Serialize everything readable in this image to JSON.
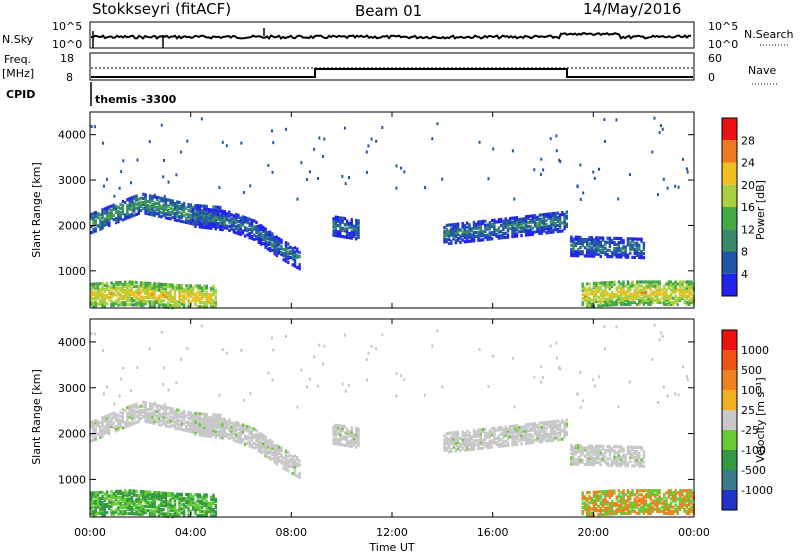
{
  "header": {
    "radar": "Stokkseyri (fitACF)",
    "beam": "Beam 01",
    "date": "14/May/2016"
  },
  "status": {
    "nsky_label": "N.Sky",
    "nsky_tick_top": "10^5",
    "nsky_tick_bottom": "10^0",
    "nsearch_label": "N.Search",
    "nsearch_tick_top": "10^5",
    "nsearch_tick_bottom": "10^0",
    "freq_label": "Freq.",
    "freq_unit": "[MHz]",
    "freq_tick_top": "18",
    "freq_tick_bottom": "8",
    "nave_label": "Nave",
    "nave_tick_top": "60",
    "nave_tick_bottom": "0",
    "cpid_label": "CPID",
    "cpid_value": "themis -3300"
  },
  "chart_data": [
    {
      "type": "heatmap",
      "name": "power",
      "ylabel": "Slant Range [km]",
      "xlabel": "",
      "ylim": [
        180,
        4500
      ],
      "yticks": [
        "1000",
        "2000",
        "3000",
        "4000"
      ],
      "colorbar_label": "Power [dB]",
      "colorbar_ticks": [
        "28",
        "24",
        "20",
        "16",
        "12",
        "8",
        "4"
      ],
      "colors": [
        "#2222ee",
        "#2255aa",
        "#3a8a6a",
        "#44aa44",
        "#a8d040",
        "#f0c020",
        "#f07820",
        "#ee1111"
      ],
      "bands": [
        {
          "x": [
            0.0,
            2.0,
            4.0,
            5.2
          ],
          "y": [
            2050,
            2500,
            2250,
            2200
          ],
          "dB": 12
        },
        {
          "x": [
            4.0,
            5.5,
            6.5,
            7.5,
            8.3
          ],
          "y": [
            2200,
            2100,
            1900,
            1500,
            1250
          ],
          "dB": 9
        },
        {
          "x": [
            9.6,
            10.7
          ],
          "y": [
            2000,
            1900
          ],
          "dB": 9
        },
        {
          "x": [
            14.0,
            16.5,
            18.9
          ],
          "y": [
            1800,
            1950,
            2100
          ],
          "dB": 10
        },
        {
          "x": [
            19.0,
            22.0
          ],
          "y": [
            1550,
            1500
          ],
          "dB": 9
        },
        {
          "x": [
            0.0,
            1.5,
            3.5,
            5.0
          ],
          "y": [
            450,
            500,
            420,
            400
          ],
          "dB": 22
        },
        {
          "x": [
            19.5,
            21.0,
            24.0
          ],
          "y": [
            450,
            500,
            500
          ],
          "dB": 22
        }
      ]
    },
    {
      "type": "heatmap",
      "name": "velocity",
      "ylabel": "Slant Range [km]",
      "xlabel": "Time UT",
      "ylim": [
        180,
        4500
      ],
      "yticks": [
        "1000",
        "2000",
        "3000",
        "4000"
      ],
      "xticks": [
        "00:00",
        "04:00",
        "08:00",
        "12:00",
        "16:00",
        "20:00",
        "00:00"
      ],
      "x_hours": [
        0,
        4,
        8,
        12,
        16,
        20,
        24
      ],
      "colorbar_label": "Velocity [m s⁻¹]",
      "colorbar_ticks": [
        "1000",
        "500",
        "100",
        "25",
        "-25",
        "-100",
        "-500",
        "-1000"
      ],
      "colors": [
        "#2233cc",
        "#3a7a8a",
        "#339944",
        "#66cc33",
        "#c8c8c8",
        "#f0b020",
        "#f08020",
        "#ee5510",
        "#ee1111"
      ]
    }
  ]
}
